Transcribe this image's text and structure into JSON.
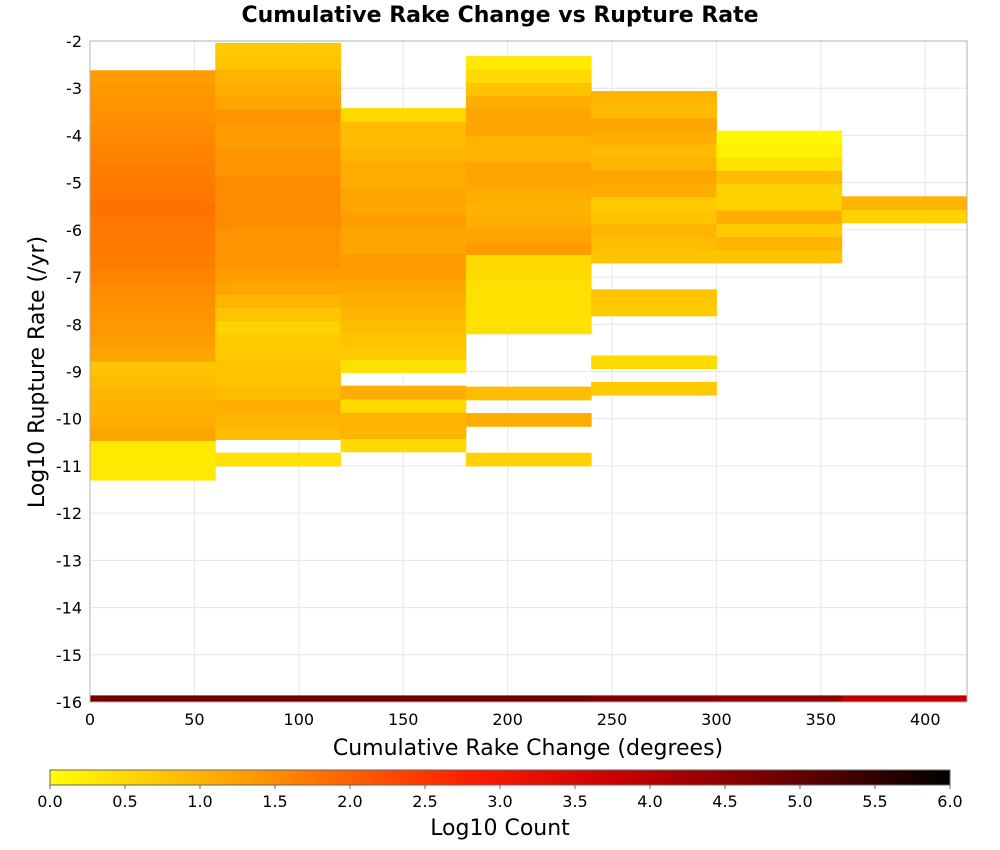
{
  "chart_data": {
    "type": "heatmap",
    "title": "Cumulative Rake Change vs Rupture Rate",
    "xlabel": "Cumulative Rake Change (degrees)",
    "ylabel": "Log10 Rupture Rate (/yr)",
    "xlim": [
      0,
      420
    ],
    "ylim": [
      -16,
      -2
    ],
    "x_ticks": [
      0,
      50,
      100,
      150,
      200,
      250,
      300,
      350,
      400
    ],
    "y_ticks": [
      -2,
      -3,
      -4,
      -5,
      -6,
      -7,
      -8,
      -9,
      -10,
      -11,
      -12,
      -13,
      -14,
      -15,
      -16
    ],
    "x_bin_width": 60,
    "y_bin_height": 0.28,
    "grid": true,
    "colorbar": {
      "label": "Log10 Count",
      "range": [
        0,
        6
      ],
      "ticks": [
        "0.0",
        "0.5",
        "1.0",
        "1.5",
        "2.0",
        "2.5",
        "3.0",
        "3.5",
        "4.0",
        "4.5",
        "5.0",
        "5.5",
        "6.0"
      ],
      "stops": [
        {
          "value": 0.0,
          "color": "#ffff00"
        },
        {
          "value": 1.2,
          "color": "#ffa500"
        },
        {
          "value": 2.8,
          "color": "#ff1c00"
        },
        {
          "value": 3.8,
          "color": "#c80000"
        },
        {
          "value": 5.0,
          "color": "#640000"
        },
        {
          "value": 6.0,
          "color": "#000000"
        }
      ]
    },
    "columns": [
      {
        "x": 0,
        "y_start": -11.3,
        "values": [
          0.3,
          0.3,
          0.3,
          1.2,
          1.1,
          1.0,
          1.0,
          0.9,
          0.8,
          1.2,
          1.3,
          1.35,
          1.4,
          1.45,
          1.5,
          1.6,
          1.65,
          1.7,
          1.7,
          1.75,
          1.8,
          1.75,
          1.7,
          1.65,
          1.6,
          1.55,
          1.5,
          1.45,
          1.4,
          1.35,
          1.3
        ]
      },
      {
        "x": 60,
        "y_start": -11.0,
        "values": [
          0.4,
          null,
          0.9,
          1.0,
          1.1,
          0.9,
          0.8,
          0.8,
          0.7,
          0.7,
          0.6,
          0.8,
          1.0,
          1.2,
          1.3,
          1.4,
          1.4,
          1.4,
          1.5,
          1.5,
          1.5,
          1.5,
          1.4,
          1.4,
          1.3,
          1.3,
          1.4,
          1.2,
          1.1,
          1.0,
          0.8,
          0.7
        ]
      },
      {
        "x": 120,
        "y_start": -10.7,
        "values": [
          0.5,
          1.0,
          1.0,
          0.5,
          1.1,
          null,
          0.4,
          0.7,
          0.8,
          0.9,
          1.0,
          1.1,
          1.2,
          1.3,
          1.3,
          1.2,
          1.2,
          1.3,
          1.2,
          1.2,
          1.1,
          1.1,
          1.0,
          0.9,
          0.9,
          0.5
        ]
      },
      {
        "x": 180,
        "y_start": -11.0,
        "values": [
          0.6,
          null,
          null,
          1.1,
          null,
          0.9,
          null,
          null,
          null,
          null,
          0.4,
          0.4,
          0.4,
          0.4,
          0.5,
          0.5,
          1.3,
          1.2,
          1.1,
          1.0,
          1.1,
          1.2,
          1.2,
          1.0,
          1.0,
          1.2,
          1.2,
          1.1,
          0.8,
          0.5,
          0.3
        ]
      },
      {
        "x": 240,
        "y_start": -9.5,
        "values": [
          0.7,
          null,
          0.5,
          null,
          null,
          null,
          0.7,
          0.8,
          null,
          null,
          0.8,
          0.9,
          1.0,
          0.8,
          0.7,
          1.1,
          1.2,
          1.0,
          0.9,
          1.1,
          1.2,
          0.9,
          1.0
        ]
      },
      {
        "x": 300,
        "y_start": -6.7,
        "values": [
          0.8,
          1.0,
          0.7,
          1.1,
          0.6,
          0.6,
          0.9,
          0.4,
          0.2,
          0.1
        ]
      },
      {
        "x": 360,
        "y_start": -5.85,
        "values": [
          0.6,
          1.0
        ]
      }
    ],
    "bottom_row": {
      "y_start": -16.0,
      "height": 0.14,
      "values": [
        4.8,
        4.8,
        4.8,
        4.8,
        4.6,
        4.5,
        3.9
      ]
    }
  }
}
